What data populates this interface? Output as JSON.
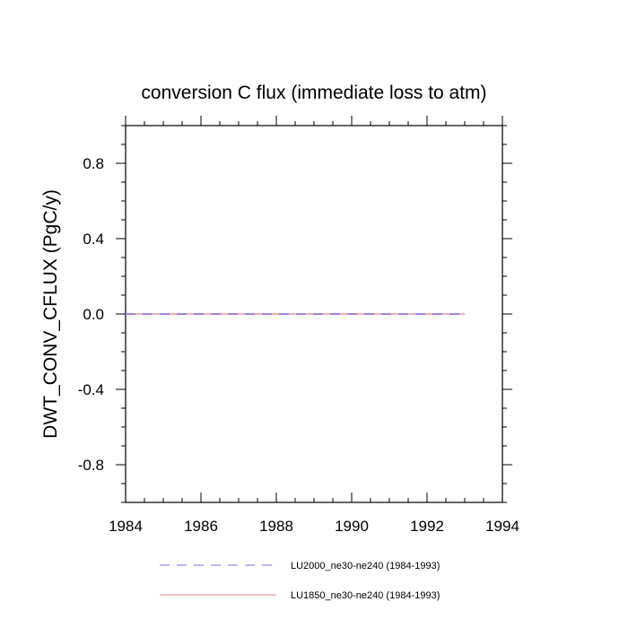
{
  "chart_data": {
    "type": "line",
    "title": "conversion C flux (immediate loss to atm)",
    "ylabel": "DWT_CONV_CFLUX  (PgC/y)",
    "xlabel": "",
    "xlim": [
      1984,
      1994
    ],
    "ylim": [
      -1.0,
      1.0
    ],
    "xticks": [
      "1984",
      "1986",
      "1988",
      "1990",
      "1992",
      "1994"
    ],
    "yticks": [
      "0.8",
      "0.4",
      "0.0",
      "-0.4",
      "-0.8"
    ],
    "grid": false,
    "legend_position": "bottom",
    "series": [
      {
        "name": "LU2000_ne30-ne240 (1984-1993)",
        "color": "#7b68ee",
        "dash": "dashed",
        "x": [
          1984,
          1985,
          1986,
          1987,
          1988,
          1989,
          1990,
          1991,
          1992,
          1993
        ],
        "y": [
          0,
          0,
          0,
          0,
          0,
          0,
          0,
          0,
          0,
          0
        ]
      },
      {
        "name": "LU1850_ne30-ne240 (1984-1993)",
        "color": "#f08080",
        "dash": "solid",
        "x": [
          1984,
          1985,
          1986,
          1987,
          1988,
          1989,
          1990,
          1991,
          1992,
          1993
        ],
        "y": [
          0,
          0,
          0,
          0,
          0,
          0,
          0,
          0,
          0,
          0
        ]
      }
    ]
  }
}
